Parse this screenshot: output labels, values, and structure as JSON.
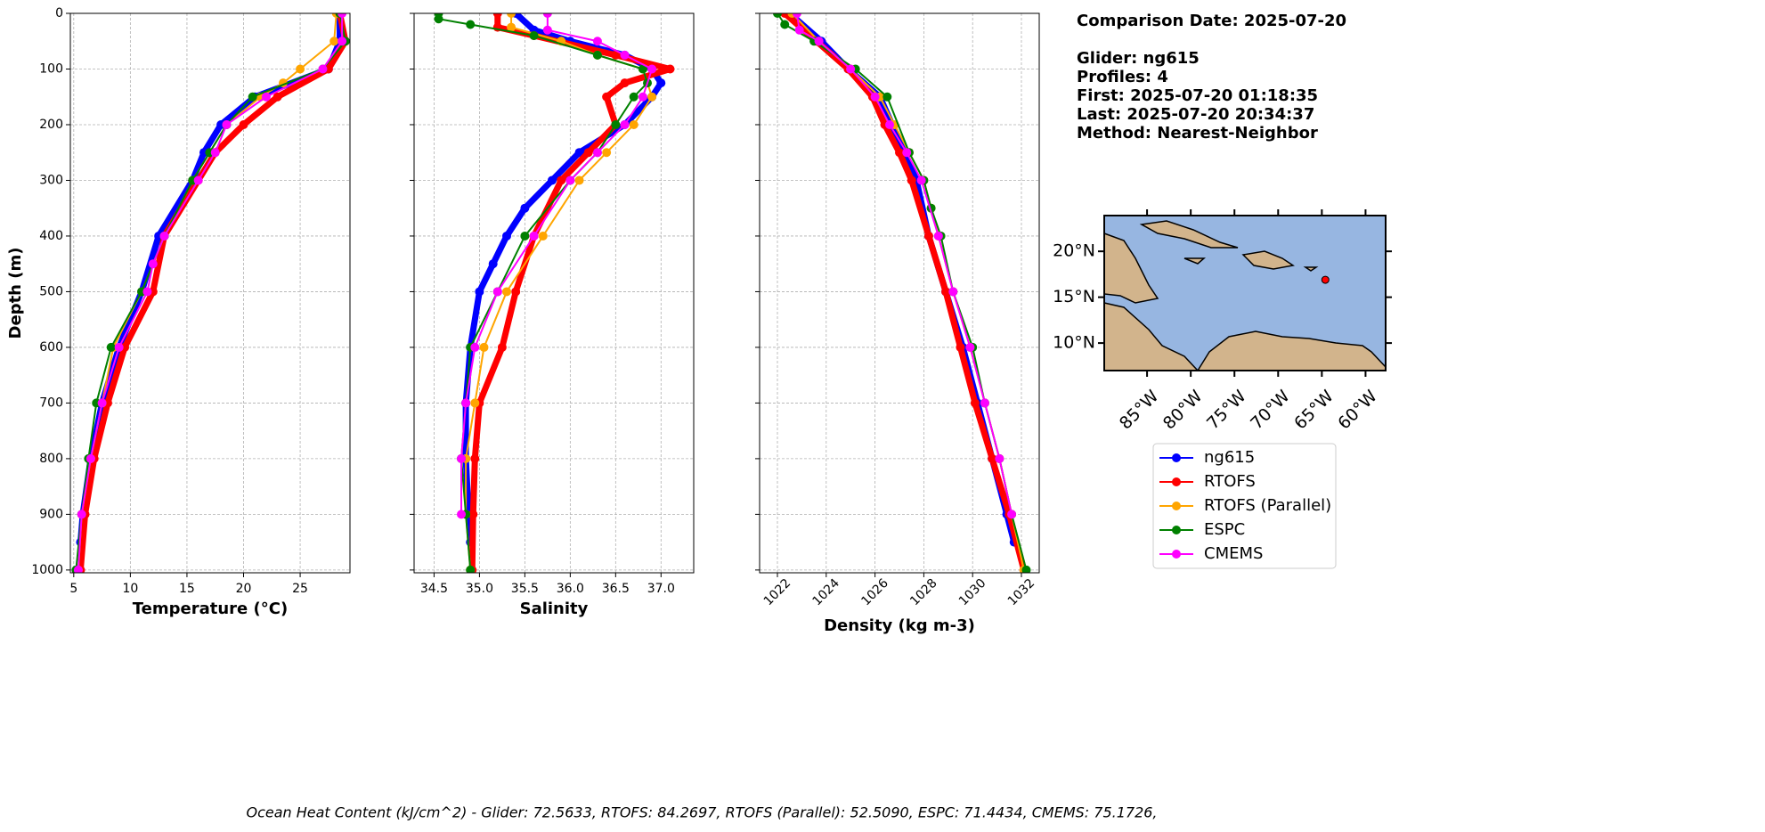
{
  "chart_data": [
    {
      "type": "profile",
      "xlabel": "Temperature (°C)",
      "ylabel": "Depth (m)",
      "xlim": [
        4.7,
        29.4
      ],
      "xticks": [
        5,
        10,
        15,
        20,
        25
      ],
      "ylim": [
        1005,
        0
      ],
      "yticks": [
        0,
        100,
        200,
        300,
        400,
        500,
        600,
        700,
        800,
        900,
        1000
      ],
      "grid": true,
      "series": [
        {
          "name": "ng615",
          "color": "#0000ff",
          "x": [
            28.5,
            28.5,
            27.5,
            21,
            18,
            16.5,
            15.5,
            12.5,
            11,
            9,
            7.5,
            6.5,
            5.8,
            5.6
          ],
          "y": [
            0,
            50,
            100,
            150,
            200,
            250,
            300,
            400,
            500,
            600,
            700,
            800,
            900,
            950
          ]
        },
        {
          "name": "RTOFS",
          "color": "#ff0000",
          "x": [
            28.5,
            29,
            27.5,
            23,
            20,
            17.5,
            16,
            13,
            12,
            9.5,
            8,
            6.8,
            6,
            5.6
          ],
          "y": [
            0,
            50,
            100,
            150,
            200,
            250,
            300,
            400,
            500,
            600,
            700,
            800,
            900,
            1000
          ]
        },
        {
          "name": "RTOFS (Parallel)",
          "color": "#ffa500",
          "x": [
            28.2,
            28,
            25,
            23.5,
            21.5,
            18.5,
            15.5,
            13,
            11,
            8.5,
            7.5,
            6.5,
            5.7,
            5.4
          ],
          "y": [
            0,
            50,
            100,
            125,
            150,
            200,
            300,
            400,
            500,
            600,
            700,
            800,
            900,
            1000
          ]
        },
        {
          "name": "ESPC",
          "color": "#008000",
          "x": [
            28.5,
            29,
            27,
            20.8,
            18.5,
            17,
            15.5,
            13,
            11,
            8.3,
            7,
            6.3,
            5.7,
            5.2
          ],
          "y": [
            0,
            50,
            100,
            150,
            200,
            250,
            300,
            400,
            500,
            600,
            700,
            800,
            900,
            1000
          ]
        },
        {
          "name": "CMEMS",
          "color": "#ff00ff",
          "x": [
            28.7,
            28.7,
            27,
            22,
            18.5,
            17.5,
            16,
            13,
            12,
            11.5,
            9,
            7.5,
            6.5,
            5.7,
            5.4
          ],
          "y": [
            0,
            50,
            100,
            150,
            200,
            250,
            300,
            400,
            450,
            500,
            600,
            700,
            800,
            900,
            1000
          ]
        }
      ]
    },
    {
      "type": "profile",
      "xlabel": "Salinity",
      "xlim": [
        34.28,
        37.36
      ],
      "xticks": [
        34.5,
        35.0,
        35.5,
        36.0,
        36.5,
        37.0
      ],
      "xtick_labels": [
        "34.5",
        "35.0",
        "35.5",
        "36.0",
        "36.5",
        "37.0"
      ],
      "ylim": [
        1005,
        0
      ],
      "yticks": [
        0,
        100,
        200,
        300,
        400,
        500,
        600,
        700,
        800,
        900,
        1000
      ],
      "grid": true,
      "series": [
        {
          "name": "ng615",
          "color": "#0000ff",
          "x": [
            35.4,
            35.6,
            36.0,
            36.6,
            36.9,
            37.0,
            36.9,
            36.6,
            36.1,
            35.8,
            35.5,
            35.3,
            35.15,
            35.0,
            34.9,
            34.85,
            34.85,
            34.88,
            34.9
          ],
          "y": [
            0,
            30,
            50,
            75,
            100,
            125,
            150,
            200,
            250,
            300,
            350,
            400,
            450,
            500,
            600,
            700,
            800,
            900,
            950
          ]
        },
        {
          "name": "RTOFS",
          "color": "#ff0000",
          "x": [
            35.2,
            35.2,
            35.6,
            36.5,
            37.1,
            36.6,
            36.4,
            36.5,
            36.2,
            35.9,
            35.6,
            35.4,
            35.25,
            35.0,
            34.95,
            34.93,
            34.92
          ],
          "y": [
            0,
            25,
            40,
            75,
            100,
            125,
            150,
            200,
            250,
            300,
            400,
            500,
            600,
            700,
            800,
            900,
            1000
          ]
        },
        {
          "name": "RTOFS (Parallel)",
          "color": "#ffa500",
          "x": [
            35.35,
            35.35,
            35.9,
            36.3,
            36.8,
            36.9,
            36.7,
            36.4,
            36.1,
            35.7,
            35.3,
            35.05,
            34.95,
            34.85,
            34.85,
            34.9
          ],
          "y": [
            0,
            25,
            50,
            75,
            100,
            150,
            200,
            250,
            300,
            400,
            500,
            600,
            700,
            800,
            900,
            1000
          ]
        },
        {
          "name": "ESPC",
          "color": "#008000",
          "x": [
            34.55,
            34.55,
            34.9,
            35.6,
            36.3,
            36.8,
            36.85,
            36.7,
            36.5,
            36.3,
            36.0,
            35.5,
            35.2,
            34.9,
            34.85,
            34.8,
            34.85,
            34.9
          ],
          "y": [
            0,
            10,
            20,
            40,
            75,
            100,
            125,
            150,
            200,
            250,
            300,
            400,
            500,
            600,
            700,
            800,
            900,
            1000
          ]
        },
        {
          "name": "CMEMS",
          "color": "#ff00ff",
          "x": [
            35.75,
            35.75,
            36.3,
            36.6,
            36.9,
            36.8,
            36.6,
            36.3,
            36.0,
            35.6,
            35.2,
            34.95,
            34.85,
            34.8,
            34.8
          ],
          "y": [
            0,
            30,
            50,
            75,
            100,
            150,
            200,
            250,
            300,
            400,
            500,
            600,
            700,
            800,
            900
          ]
        }
      ]
    },
    {
      "type": "profile",
      "xlabel": "Density (kg m-3)",
      "xlim": [
        1021.27,
        1032.73
      ],
      "xticks": [
        1022,
        1024,
        1026,
        1028,
        1030,
        1032
      ],
      "ylim": [
        1005,
        0
      ],
      "yticks": [
        0,
        100,
        200,
        300,
        400,
        500,
        600,
        700,
        800,
        900,
        1000
      ],
      "grid": true,
      "series": [
        {
          "name": "ng615",
          "color": "#0000ff",
          "x": [
            1022.5,
            1023.8,
            1024.9,
            1026.2,
            1026.7,
            1027.2,
            1027.7,
            1028.2,
            1028.9,
            1029.6,
            1030.2,
            1030.8,
            1031.4,
            1031.7
          ],
          "y": [
            0,
            50,
            100,
            150,
            200,
            250,
            300,
            400,
            500,
            600,
            700,
            800,
            900,
            950
          ]
        },
        {
          "name": "RTOFS",
          "color": "#ff0000",
          "x": [
            1022.3,
            1023.6,
            1024.9,
            1025.9,
            1026.4,
            1027.0,
            1027.5,
            1028.2,
            1028.9,
            1029.5,
            1030.1,
            1030.8,
            1031.5,
            1032.1
          ],
          "y": [
            0,
            50,
            100,
            150,
            200,
            250,
            300,
            400,
            500,
            600,
            700,
            800,
            900,
            1000
          ]
        },
        {
          "name": "RTOFS (Parallel)",
          "color": "#ffa500",
          "x": [
            1022.6,
            1023.7,
            1025,
            1026.2,
            1026.8,
            1027.4,
            1028.0,
            1028.3,
            1028.6,
            1029.2,
            1029.9,
            1030.5,
            1031.1,
            1031.6,
            1032.1
          ],
          "y": [
            0,
            50,
            100,
            150,
            200,
            250,
            300,
            350,
            400,
            500,
            600,
            700,
            800,
            900,
            1000
          ]
        },
        {
          "name": "ESPC",
          "color": "#008000",
          "x": [
            1022,
            1022.3,
            1023.5,
            1025.2,
            1026.5,
            1027.4,
            1028,
            1028.3,
            1028.7,
            1029.2,
            1030,
            1030.5,
            1031.1,
            1031.6,
            1032.2
          ],
          "y": [
            0,
            20,
            50,
            100,
            150,
            250,
            300,
            350,
            400,
            500,
            600,
            700,
            800,
            900,
            1000
          ]
        },
        {
          "name": "CMEMS",
          "color": "#ff00ff",
          "x": [
            1022.8,
            1022.9,
            1023.7,
            1025,
            1026,
            1026.6,
            1027.3,
            1027.9,
            1028.6,
            1029.2,
            1029.9,
            1030.5,
            1031.1,
            1031.6
          ],
          "y": [
            0,
            30,
            50,
            100,
            150,
            200,
            250,
            300,
            400,
            500,
            600,
            700,
            800,
            900
          ]
        }
      ]
    }
  ],
  "info": [
    "Comparison Date: 2025-07-20",
    "Glider: ng615",
    "Profiles: 4",
    "First: 2025-07-20 01:18:35",
    "Last: 2025-07-20 20:34:37",
    "Method: Nearest-Neighbor"
  ],
  "map": {
    "xlim": [
      -89.9,
      -57.7
    ],
    "ylim": [
      7.0,
      23.9
    ],
    "xticks": [
      {
        "value": -85,
        "label": "85°W"
      },
      {
        "value": -80,
        "label": "80°W"
      },
      {
        "value": -75,
        "label": "75°W"
      },
      {
        "value": -70,
        "label": "70°W"
      },
      {
        "value": -65,
        "label": "65°W"
      },
      {
        "value": -60,
        "label": "60°W"
      }
    ],
    "yticks": [
      {
        "value": 10,
        "label": "10°N"
      },
      {
        "value": 15,
        "label": "15°N"
      },
      {
        "value": 20,
        "label": "20°N"
      }
    ],
    "point": {
      "lon": -64.6,
      "lat": 16.9,
      "color": "#ff0000"
    }
  },
  "footer": "Ocean Heat Content (kJ/cm^2) - Glider: 72.5633,  RTOFS: 84.2697,  RTOFS (Parallel): 52.5090,  ESPC: 71.4434,  CMEMS: 75.1726,"
}
